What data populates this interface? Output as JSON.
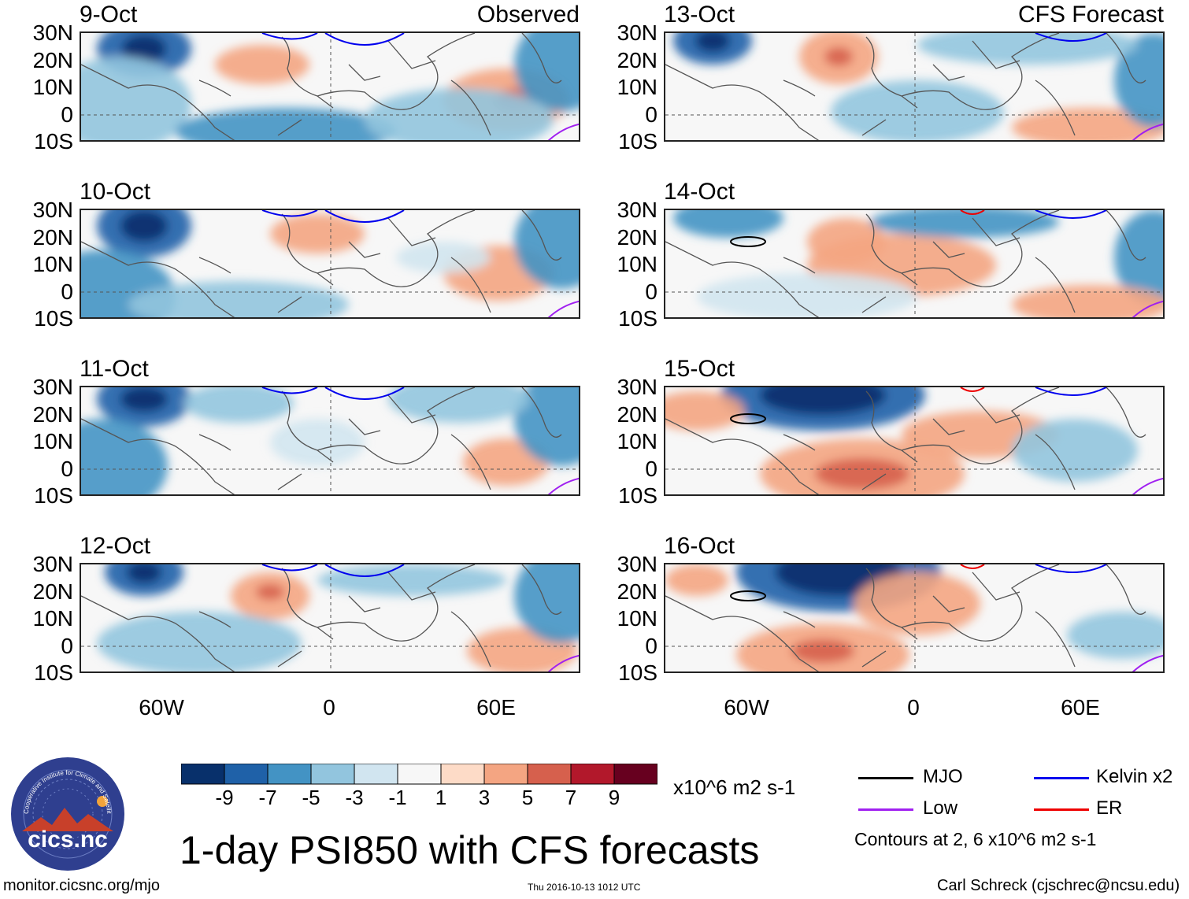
{
  "title": "1-day PSI850 with CFS forecasts",
  "observed_label": "Observed",
  "forecast_label": "CFS Forecast",
  "panels": {
    "obs": [
      "9-Oct",
      "10-Oct",
      "11-Oct",
      "12-Oct"
    ],
    "fcst": [
      "13-Oct",
      "14-Oct",
      "15-Oct",
      "16-Oct"
    ]
  },
  "lat_labels": [
    "30N",
    "20N",
    "10N",
    "0",
    "10S"
  ],
  "lon_labels": [
    "60W",
    "0",
    "60E"
  ],
  "colorbar": {
    "ticks": [
      "-9",
      "-7",
      "-5",
      "-3",
      "-1",
      "1",
      "3",
      "5",
      "7",
      "9"
    ],
    "units": "x10^6 m2 s-1",
    "colors": [
      "#08306b",
      "#1f61a8",
      "#4393c4",
      "#92c5de",
      "#d1e5f0",
      "#f7f7f7",
      "#fddbc7",
      "#f4a582",
      "#d6604d",
      "#b2182b",
      "#67001f"
    ]
  },
  "legend": {
    "mjo": "MJO",
    "low": "Low",
    "kelvin": "Kelvin x2",
    "er": "ER",
    "colors": {
      "mjo": "#000000",
      "low": "#a020f0",
      "kelvin": "#0000ee",
      "er": "#ee0000"
    },
    "contours_note": "Contours at 2, 6 x10^6 m2 s-1"
  },
  "footer": {
    "logo_text": "cics.nc",
    "logo_ring_text": "Cooperative Institute for Climate and Satellites",
    "url": "monitor.cicsnc.org/mjo",
    "timestamp": "Thu 2016-10-13 1012 UTC",
    "author": "Carl Schreck (cjschrec@ncsu.edu)"
  }
}
